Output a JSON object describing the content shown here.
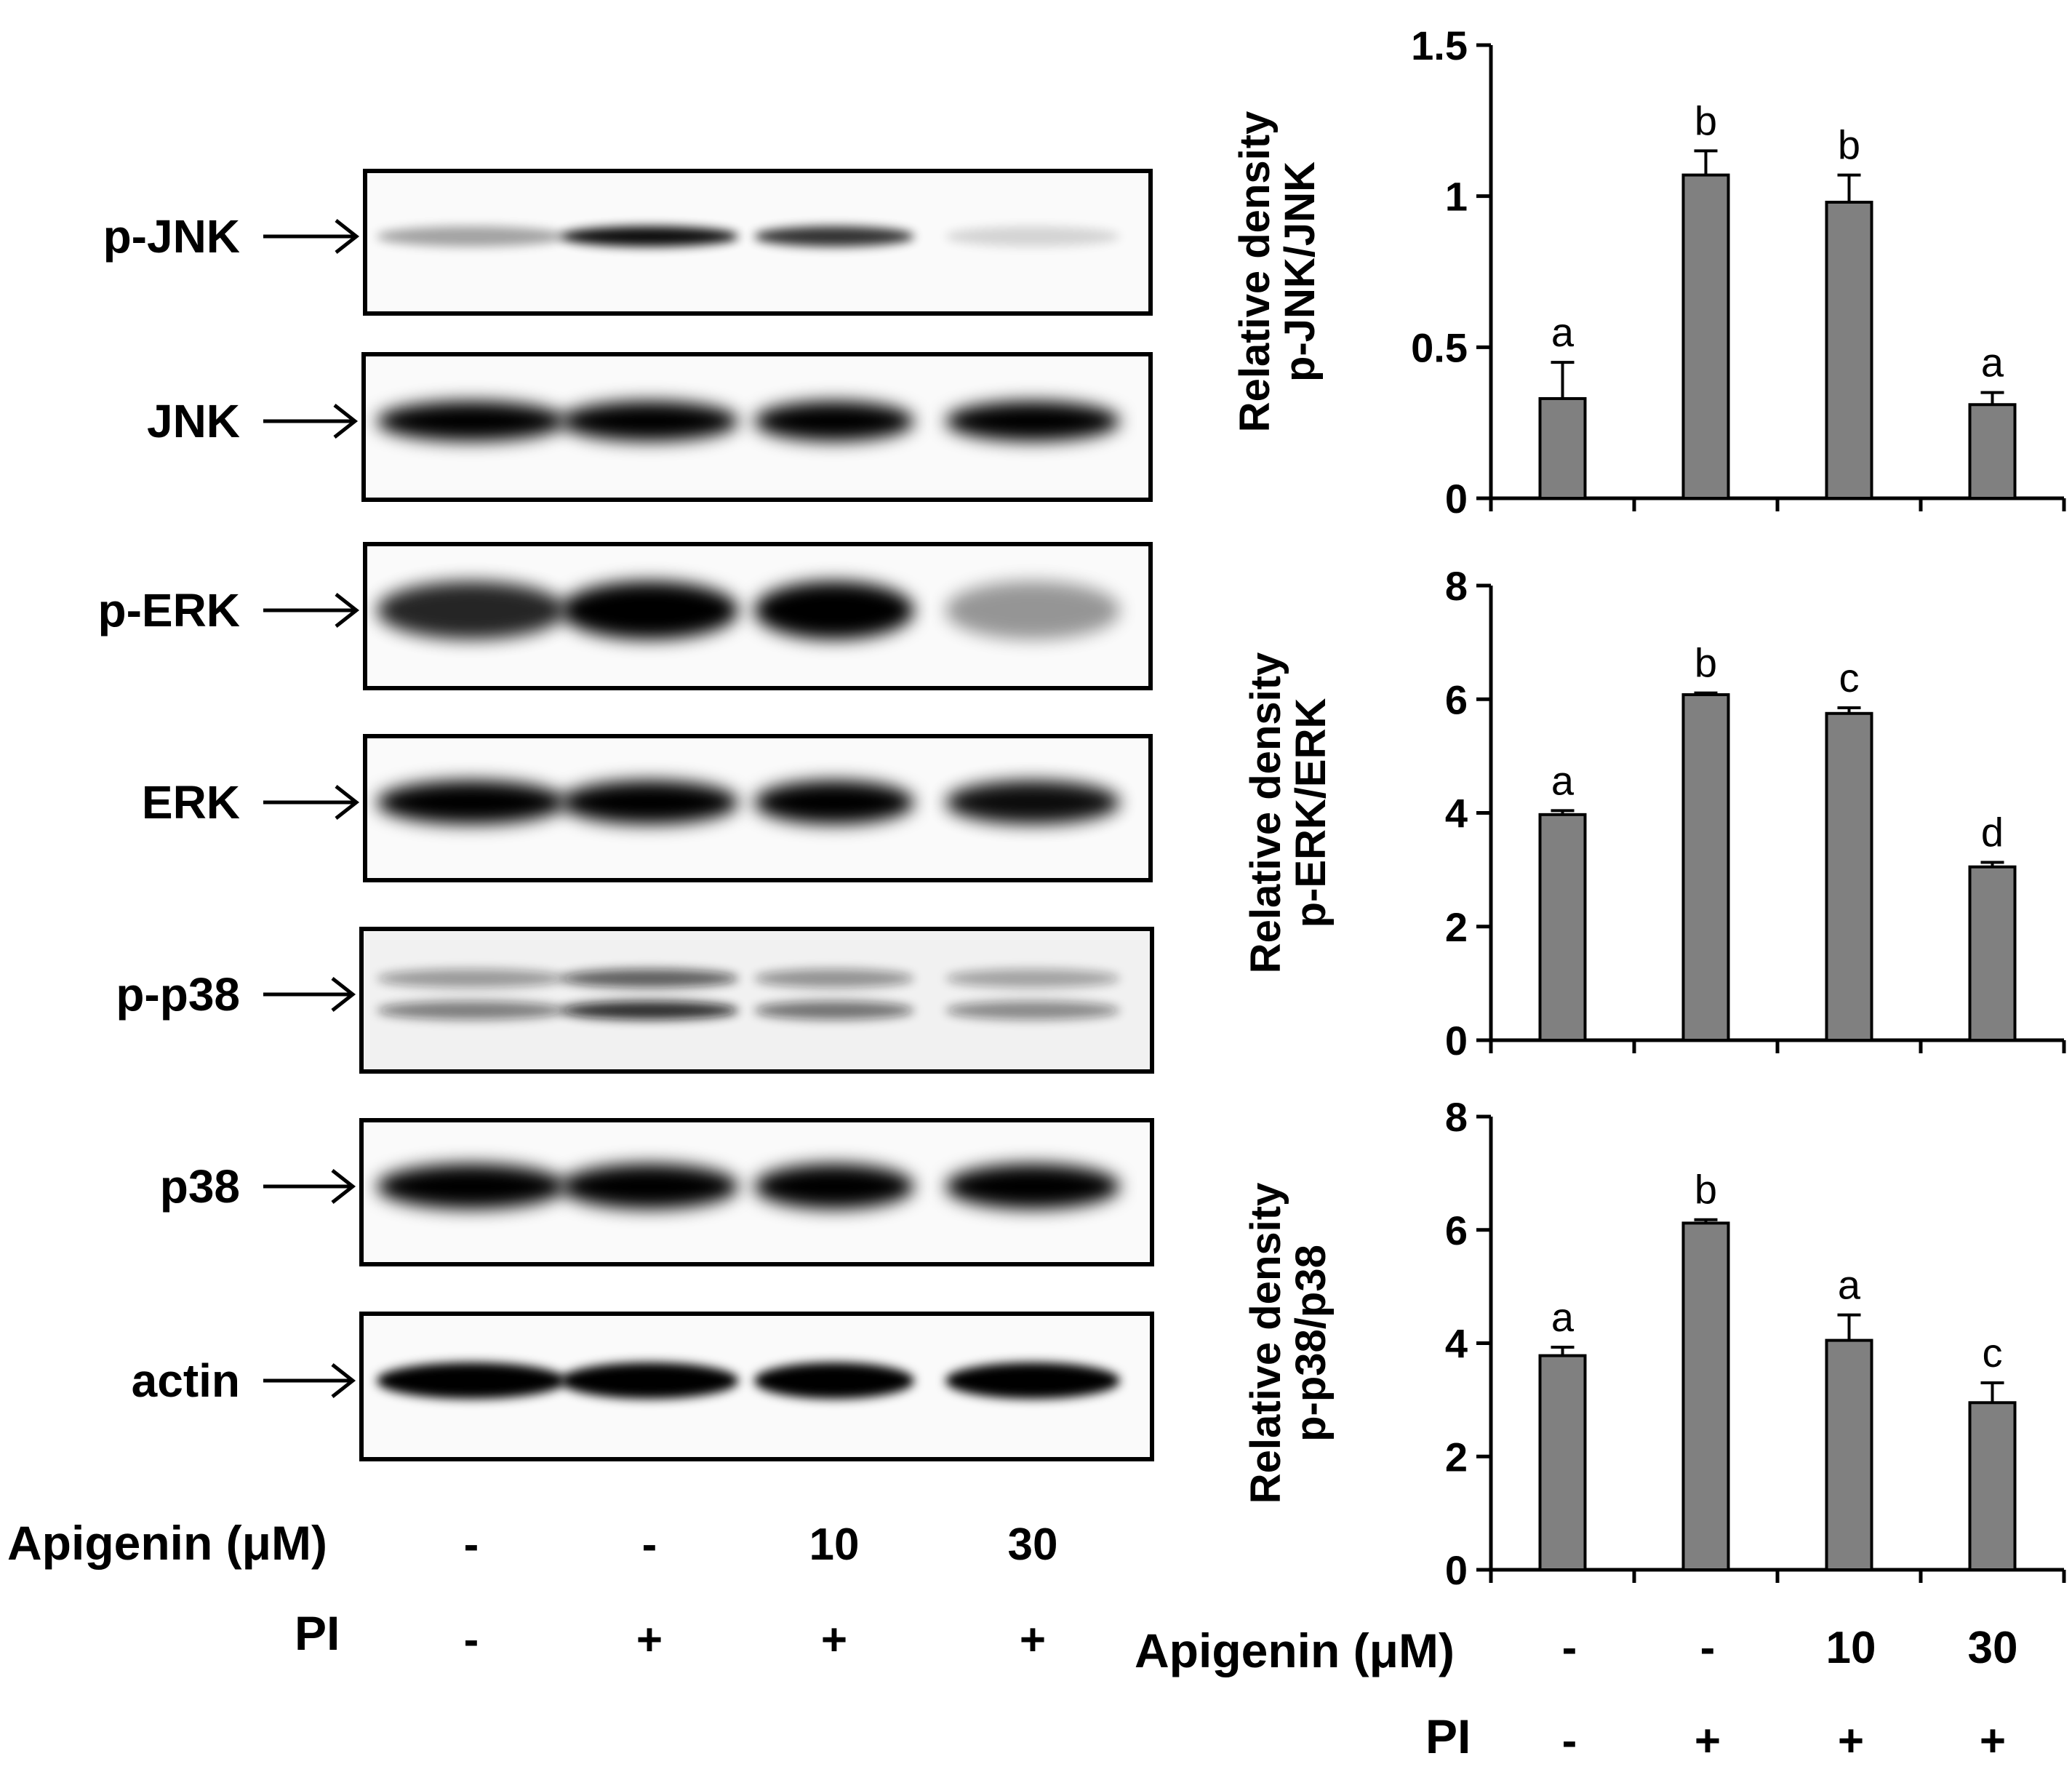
{
  "western_blot": {
    "proteins": [
      "p-JNK",
      "JNK",
      "p-ERK",
      "ERK",
      "p-p38",
      "p38",
      "actin"
    ],
    "treatment_label": "Apigenin (μM)",
    "treatment_values": [
      "-",
      "-",
      "10",
      "30"
    ],
    "pi_label": "PI",
    "pi_values": [
      "-",
      "+",
      "+",
      "+"
    ]
  },
  "bottom_axis": {
    "treatment_label": "Apigenin (μM)",
    "treatment_values": [
      "-",
      "-",
      "10",
      "30"
    ],
    "pi_label": "PI",
    "pi_values": [
      "-",
      "+",
      "+",
      "+"
    ]
  },
  "chart_data": [
    {
      "type": "bar",
      "ylabel": [
        "Relative density",
        "p-JNK/JNK"
      ],
      "ylim": [
        0,
        1.5
      ],
      "yticks": [
        "0",
        "0.5",
        "1",
        "1.5"
      ],
      "ytick_values": [
        0,
        0.5,
        1,
        1.5
      ],
      "values": [
        0.33,
        1.07,
        0.98,
        0.31
      ],
      "errors": [
        0.12,
        0.08,
        0.09,
        0.04
      ],
      "sig_labels": [
        "a",
        "b",
        "b",
        "a"
      ],
      "bar_color": "#808080"
    },
    {
      "type": "bar",
      "ylabel": [
        "Relative density",
        "p-ERK/ERK"
      ],
      "ylim": [
        0,
        8
      ],
      "yticks": [
        "0",
        "2",
        "4",
        "6",
        "8"
      ],
      "ytick_values": [
        0,
        2,
        4,
        6,
        8
      ],
      "values": [
        3.97,
        6.08,
        5.75,
        3.05
      ],
      "errors": [
        0.07,
        0.03,
        0.1,
        0.08
      ],
      "sig_labels": [
        "a",
        "b",
        "c",
        "d"
      ],
      "bar_color": "#808080"
    },
    {
      "type": "bar",
      "ylabel": [
        "Relative density",
        "p-p38/p38"
      ],
      "ylim": [
        0,
        8
      ],
      "yticks": [
        "0",
        "2",
        "4",
        "6",
        "8"
      ],
      "ytick_values": [
        0,
        2,
        4,
        6,
        8
      ],
      "values": [
        3.78,
        6.12,
        4.05,
        2.95
      ],
      "errors": [
        0.15,
        0.06,
        0.45,
        0.35
      ],
      "sig_labels": [
        "a",
        "b",
        "a",
        "c"
      ],
      "bar_color": "#808080"
    }
  ]
}
